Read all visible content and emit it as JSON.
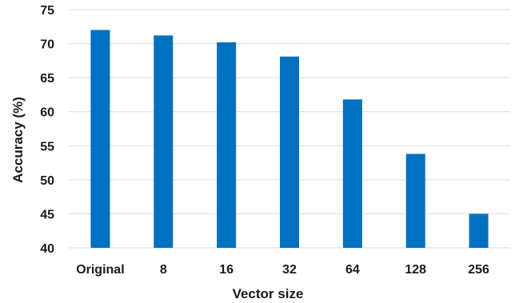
{
  "chart_data": {
    "type": "bar",
    "title": "",
    "xlabel": "Vector size",
    "ylabel": "Accuracy (%)",
    "categories": [
      "Original",
      "8",
      "16",
      "32",
      "64",
      "128",
      "256"
    ],
    "values": [
      72.0,
      71.2,
      70.2,
      68.1,
      61.8,
      53.8,
      45.0
    ],
    "ylim": [
      40,
      75
    ],
    "yticks": [
      "40",
      "45",
      "50",
      "55",
      "60",
      "65",
      "70",
      "75"
    ],
    "grid": true,
    "legend": "none",
    "bar_color": "#0070c0",
    "grid_color": "#d9d9d9"
  }
}
